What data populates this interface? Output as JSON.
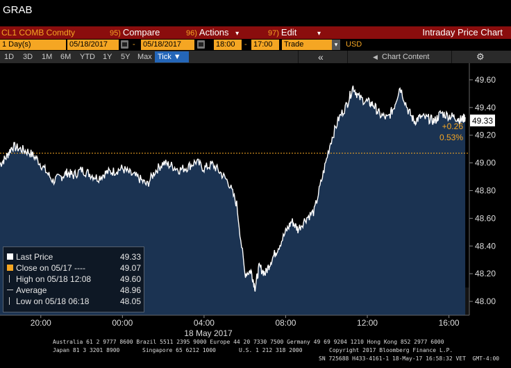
{
  "window": {
    "title": "GRAB"
  },
  "command_bar": {
    "ticker": "CL1 COMB Comdty",
    "compare": {
      "num": "95)",
      "label": "Compare"
    },
    "actions": {
      "num": "96)",
      "label": "Actions"
    },
    "edit": {
      "num": "97)",
      "label": "Edit"
    },
    "chart_title": "Intraday Price Chart"
  },
  "date_bar": {
    "period": "1 Day(s)",
    "start_date": "05/18/2017",
    "dash": "-",
    "end_date": "05/18/2017",
    "start_time": "18:00",
    "time_dash": "-",
    "end_time": "17:00",
    "mode": "Trade",
    "currency": "USD"
  },
  "range_bar": {
    "ranges": [
      "1D",
      "3D",
      "1M",
      "6M",
      "YTD",
      "1Y",
      "5Y",
      "Max"
    ],
    "tick_label": "Tick ▼",
    "collapse": "«",
    "content_label": "Chart Content",
    "settings_icon": "gear-icon"
  },
  "chart_data": {
    "type": "area",
    "title": "",
    "xlabel": "18 May 2017",
    "ylabel": "",
    "x_ticks": [
      "20:00",
      "00:00",
      "04:00",
      "08:00",
      "12:00",
      "16:00"
    ],
    "y_ticks": [
      "48.00",
      "48.20",
      "48.40",
      "48.60",
      "48.80",
      "49.00",
      "49.20",
      "49.40",
      "49.60"
    ],
    "ylim": [
      47.9,
      49.72
    ],
    "x_hours_range": [
      18,
      41
    ],
    "series": [
      {
        "name": "Last Price",
        "x": [
          18.0,
          18.3,
          18.6,
          19.0,
          19.4,
          19.8,
          20.2,
          20.6,
          21.0,
          21.3,
          21.6,
          22.0,
          22.4,
          22.8,
          23.2,
          23.6,
          24.0,
          24.4,
          24.8,
          25.2,
          25.6,
          26.0,
          26.4,
          26.8,
          27.2,
          27.6,
          28.0,
          28.4,
          28.8,
          29.2,
          29.6,
          30.0,
          30.3,
          30.5,
          30.7,
          31.0,
          31.3,
          31.6,
          32.0,
          32.3,
          32.6,
          33.0,
          33.4,
          33.8,
          34.2,
          34.6,
          35.0,
          35.3,
          35.6,
          36.0,
          36.3,
          36.6,
          37.0,
          37.3,
          37.6,
          38.0,
          38.3,
          38.6,
          39.0,
          39.3,
          39.6,
          40.0,
          40.3,
          40.6,
          40.8
        ],
        "values": [
          48.99,
          49.04,
          49.12,
          49.1,
          49.08,
          49.03,
          48.95,
          48.87,
          48.9,
          48.93,
          48.91,
          48.95,
          48.92,
          48.89,
          48.93,
          48.94,
          48.96,
          48.92,
          48.89,
          48.84,
          48.94,
          49.0,
          48.98,
          48.95,
          48.97,
          49.01,
          48.96,
          48.99,
          48.93,
          48.86,
          48.7,
          48.2,
          48.22,
          48.1,
          48.25,
          48.2,
          48.3,
          48.38,
          48.5,
          48.58,
          48.52,
          48.6,
          48.65,
          48.9,
          49.15,
          49.32,
          49.42,
          49.55,
          49.47,
          49.44,
          49.42,
          49.35,
          49.32,
          49.4,
          49.55,
          49.38,
          49.3,
          49.33,
          49.32,
          49.3,
          49.36,
          49.34,
          49.33,
          49.31,
          49.33
        ]
      }
    ],
    "prev_close": 49.07,
    "last_price": "49.33",
    "change": "+0.26",
    "change_pct": "0.53%"
  },
  "legend": {
    "last_price_label": "Last Price",
    "last_price_value": "49.33",
    "close_label": "Close on 05/17 ----",
    "close_value": "49.07",
    "high_label": "High on 05/18 12:08",
    "high_value": "49.60",
    "average_label": "Average",
    "average_value": "48.96",
    "low_label": "Low on 05/18 06:18",
    "low_value": "48.05"
  },
  "colors": {
    "accent_orange": "#f5a623",
    "command_red": "#8a0d0d",
    "area_fill": "#1b3352",
    "line": "#ffffff",
    "tick_blue": "#2466b8"
  },
  "footer": {
    "line1": "Australia 61 2 9777 8600 Brazil 5511 2395 9000 Europe 44 20 7330 7500 Germany 49 69 9204 1210 Hong Kong 852 2977 6000",
    "line2a": "Japan 81 3 3201 8900",
    "line2b": "Singapore 65 6212 1000",
    "line2c": "U.S. 1 212 318 2000",
    "copyright": "Copyright 2017 Bloomberg Finance L.P.",
    "sn_line": "SN 725688 H433-4161-1 18-May-17 16:58:32 VET  GMT-4:00"
  }
}
